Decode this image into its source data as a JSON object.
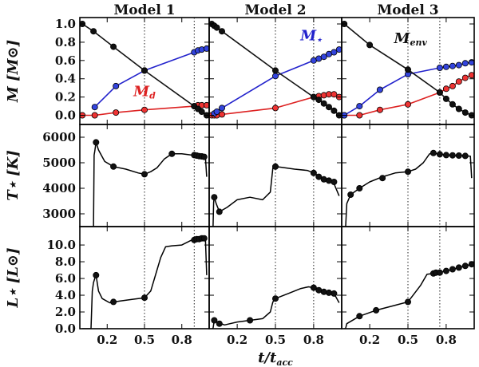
{
  "chart_data": {
    "type": "line",
    "figure": {
      "model_titles": [
        "Model 1",
        "Model 2",
        "Model 3"
      ],
      "xlabel": "t/t",
      "xlabel_sub": "acc",
      "xlim": [
        0,
        1
      ],
      "xticks": [
        0.2,
        0.5,
        0.8
      ],
      "xtick_labels": [
        "0.2",
        "0.5",
        "0.8"
      ]
    },
    "rows": [
      {
        "id": "mass",
        "ylabel": "M [M⊙]",
        "ylim": [
          -0.1,
          1.07
        ],
        "yticks": [
          0.0,
          0.2,
          0.4,
          0.6,
          0.8,
          1.0
        ],
        "ytick_labels": [
          "0.0",
          "0.2",
          "0.4",
          "0.6",
          "0.8",
          "1.0"
        ]
      },
      {
        "id": "temperature",
        "ylabel": "T⋆ [K]",
        "ylim": [
          2500,
          6500
        ],
        "yticks": [
          3000,
          4000,
          5000,
          6000
        ],
        "ytick_labels": [
          "3000",
          "4000",
          "5000",
          "6000"
        ]
      },
      {
        "id": "luminosity",
        "ylabel": "L⋆ [L⊙]",
        "ylim": [
          0,
          12.2
        ],
        "yticks": [
          0,
          2,
          4,
          6,
          8,
          10
        ],
        "ytick_labels": [
          "0.0",
          "2.0",
          "4.0",
          "6.0",
          "8.0",
          "10.0"
        ]
      }
    ],
    "annotations": [
      {
        "model": 0,
        "text": "M",
        "sub": "d",
        "color": "#dd2222",
        "x": 0.5,
        "y": 0.21
      },
      {
        "model": 1,
        "text": "M",
        "sub": "⋆",
        "color": "#2222cc",
        "x": 0.78,
        "y": 0.82
      },
      {
        "model": 2,
        "text": "M",
        "sub": "env",
        "color": "#111111",
        "x": 0.52,
        "y": 0.79
      }
    ],
    "models": [
      {
        "name": "Model 1",
        "vline": 0.9,
        "mass": {
          "envelope": {
            "x": [
              0,
              0.09,
              0.25,
              0.5,
              0.9,
              0.93,
              0.96,
              1.0
            ],
            "y": [
              1.0,
              0.92,
              0.75,
              0.49,
              0.1,
              0.07,
              0.04,
              0.0
            ]
          },
          "star": {
            "x": [
              0.1,
              0.27,
              0.5,
              0.9,
              0.93,
              0.96,
              1.0
            ],
            "y": [
              0.09,
              0.32,
              0.49,
              0.69,
              0.71,
              0.72,
              0.73
            ]
          },
          "disk": {
            "x": [
              0.0,
              0.1,
              0.27,
              0.5,
              0.9,
              0.93,
              0.96,
              1.0
            ],
            "y": [
              0.0,
              0.0,
              0.03,
              0.06,
              0.1,
              0.11,
              0.11,
              0.11
            ]
          }
        },
        "temperature": {
          "line": {
            "x": [
              0.09,
              0.095,
              0.1,
              0.11,
              0.13,
              0.18,
              0.25,
              0.35,
              0.45,
              0.5,
              0.55,
              0.6,
              0.66,
              0.72,
              0.8,
              0.88,
              0.92,
              0.96,
              0.99,
              1.0
            ],
            "y": [
              2400,
              5300,
              5450,
              5800,
              5500,
              5050,
              4850,
              4750,
              4600,
              4550,
              4650,
              4800,
              5150,
              5350,
              5350,
              5300,
              5280,
              5250,
              5230,
              4450
            ]
          },
          "markers": {
            "x": [
              0.11,
              0.25,
              0.5,
              0.72,
              0.9,
              0.92,
              0.94,
              0.96,
              0.98
            ],
            "y": [
              5800,
              4850,
              4550,
              5350,
              5300,
              5280,
              5260,
              5250,
              5230
            ]
          }
        },
        "luminosity": {
          "line": {
            "x": [
              0.0,
              0.07,
              0.08,
              0.09,
              0.1,
              0.11,
              0.13,
              0.16,
              0.22,
              0.3,
              0.4,
              0.5,
              0.55,
              0.6,
              0.63,
              0.67,
              0.72,
              0.8,
              0.88,
              0.92,
              0.96,
              0.99,
              1.0
            ],
            "y": [
              0.0,
              0.0,
              4.5,
              5.5,
              6.0,
              6.4,
              4.5,
              3.6,
              3.1,
              3.3,
              3.5,
              3.7,
              4.5,
              7.0,
              8.5,
              9.8,
              9.9,
              10.0,
              10.6,
              10.7,
              10.7,
              10.8,
              6.4
            ]
          },
          "markers": {
            "x": [
              0.11,
              0.25,
              0.5,
              0.9,
              0.92,
              0.94,
              0.96,
              0.98
            ],
            "y": [
              6.4,
              3.2,
              3.7,
              10.6,
              10.7,
              10.7,
              10.8,
              10.8
            ]
          }
        }
      },
      {
        "name": "Model 2",
        "vline": 0.8,
        "mass": {
          "envelope": {
            "x": [
              0,
              0.02,
              0.04,
              0.08,
              0.5,
              0.8,
              0.84,
              0.88,
              0.92,
              0.96,
              1.0
            ],
            "y": [
              1.0,
              0.98,
              0.96,
              0.92,
              0.49,
              0.2,
              0.17,
              0.13,
              0.09,
              0.05,
              0.0
            ]
          },
          "star": {
            "x": [
              0.02,
              0.04,
              0.08,
              0.5,
              0.8,
              0.84,
              0.88,
              0.92,
              0.96,
              1.0
            ],
            "y": [
              0.02,
              0.04,
              0.08,
              0.43,
              0.6,
              0.62,
              0.64,
              0.67,
              0.69,
              0.72
            ]
          },
          "disk": {
            "x": [
              0.0,
              0.02,
              0.04,
              0.08,
              0.5,
              0.8,
              0.84,
              0.88,
              0.92,
              0.96,
              1.0
            ],
            "y": [
              0.0,
              0.0,
              0.0,
              0.01,
              0.08,
              0.2,
              0.21,
              0.22,
              0.23,
              0.23,
              0.2
            ]
          }
        },
        "temperature": {
          "line": {
            "x": [
              0.0,
              0.01,
              0.015,
              0.02,
              0.035,
              0.06,
              0.12,
              0.2,
              0.3,
              0.4,
              0.46,
              0.48,
              0.5,
              0.55,
              0.65,
              0.75,
              0.8,
              0.85,
              0.9,
              0.95,
              1.0
            ],
            "y": [
              2400,
              2400,
              3450,
              3650,
              3400,
              3080,
              3250,
              3550,
              3650,
              3550,
              3850,
              4800,
              4850,
              4820,
              4750,
              4700,
              4600,
              4450,
              4350,
              4300,
              3700
            ]
          },
          "markers": {
            "x": [
              0.02,
              0.06,
              0.5,
              0.8,
              0.84,
              0.88,
              0.92,
              0.96
            ],
            "y": [
              3650,
              3080,
              4850,
              4600,
              4450,
              4350,
              4300,
              4250
            ]
          }
        },
        "luminosity": {
          "line": {
            "x": [
              0.0,
              0.01,
              0.02,
              0.05,
              0.1,
              0.2,
              0.3,
              0.4,
              0.46,
              0.48,
              0.5,
              0.6,
              0.7,
              0.76,
              0.8,
              0.84,
              0.88,
              0.92,
              0.96,
              1.0
            ],
            "y": [
              0.0,
              0.0,
              1.0,
              0.75,
              0.45,
              0.8,
              1.0,
              1.2,
              2.0,
              3.2,
              3.6,
              4.2,
              4.8,
              5.0,
              4.9,
              4.6,
              4.4,
              4.3,
              4.2,
              3.1
            ]
          },
          "markers": {
            "x": [
              0.02,
              0.06,
              0.3,
              0.5,
              0.8,
              0.84,
              0.88,
              0.92,
              0.96
            ],
            "y": [
              1.0,
              0.6,
              1.0,
              3.6,
              4.9,
              4.6,
              4.4,
              4.3,
              4.2
            ]
          }
        }
      },
      {
        "name": "Model 3",
        "vline": 0.75,
        "mass": {
          "envelope": {
            "x": [
              0.0,
              0.2,
              0.5,
              0.75,
              0.8,
              0.85,
              0.9,
              0.95,
              1.0
            ],
            "y": [
              1.0,
              0.77,
              0.5,
              0.25,
              0.18,
              0.12,
              0.07,
              0.03,
              0.0
            ]
          },
          "star": {
            "x": [
              0.0,
              0.12,
              0.28,
              0.5,
              0.75,
              0.8,
              0.85,
              0.9,
              0.95,
              1.0
            ],
            "y": [
              0.0,
              0.1,
              0.28,
              0.45,
              0.52,
              0.53,
              0.54,
              0.55,
              0.57,
              0.58
            ]
          },
          "disk": {
            "x": [
              0.0,
              0.12,
              0.28,
              0.5,
              0.75,
              0.8,
              0.85,
              0.9,
              0.95,
              1.0
            ],
            "y": [
              0.0,
              0.0,
              0.06,
              0.12,
              0.25,
              0.29,
              0.32,
              0.37,
              0.41,
              0.44
            ]
          }
        },
        "temperature": {
          "line": {
            "x": [
              0.0,
              0.01,
              0.02,
              0.05,
              0.12,
              0.2,
              0.3,
              0.4,
              0.5,
              0.56,
              0.62,
              0.67,
              0.7,
              0.75,
              0.85,
              0.95,
              0.99,
              1.0
            ],
            "y": [
              2400,
              2400,
              3400,
              3750,
              4000,
              4250,
              4450,
              4600,
              4650,
              4750,
              5000,
              5350,
              5380,
              5330,
              5290,
              5270,
              5260,
              4400
            ]
          },
          "markers": {
            "x": [
              0.05,
              0.12,
              0.3,
              0.5,
              0.7,
              0.75,
              0.8,
              0.85,
              0.9,
              0.95
            ],
            "y": [
              3750,
              4000,
              4400,
              4650,
              5380,
              5330,
              5300,
              5290,
              5280,
              5270
            ]
          }
        },
        "luminosity": {
          "line": {
            "x": [
              0.0,
              0.01,
              0.02,
              0.12,
              0.25,
              0.4,
              0.5,
              0.6,
              0.65,
              0.7,
              0.8,
              0.9,
              1.0
            ],
            "y": [
              0.0,
              0.0,
              0.6,
              1.5,
              2.2,
              2.8,
              3.2,
              5.2,
              6.5,
              6.6,
              6.9,
              7.3,
              7.7
            ]
          },
          "markers": {
            "x": [
              0.12,
              0.25,
              0.5,
              0.7,
              0.72,
              0.75,
              0.8,
              0.85,
              0.9,
              0.95,
              1.0
            ],
            "y": [
              1.5,
              2.2,
              3.2,
              6.6,
              6.7,
              6.7,
              6.9,
              7.1,
              7.3,
              7.5,
              7.7
            ]
          }
        }
      }
    ],
    "colors": {
      "envelope": "#111111",
      "star": "#2222cc",
      "disk": "#dd2222",
      "line": "#000000",
      "marker_fill_black": "#111111",
      "marker_fill_blue": "#3344dd",
      "marker_fill_red": "#ee3333"
    }
  }
}
